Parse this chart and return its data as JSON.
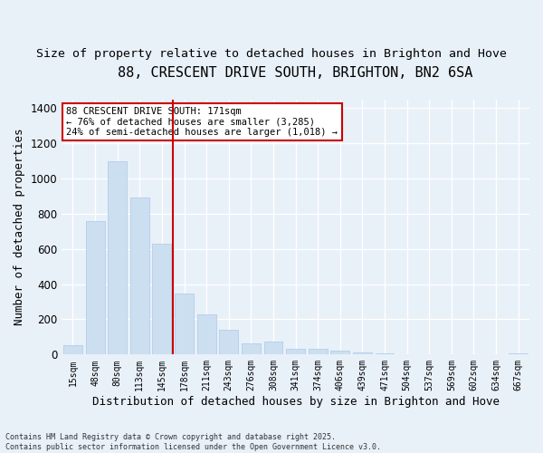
{
  "title": "88, CRESCENT DRIVE SOUTH, BRIGHTON, BN2 6SA",
  "subtitle": "Size of property relative to detached houses in Brighton and Hove",
  "xlabel": "Distribution of detached houses by size in Brighton and Hove",
  "ylabel": "Number of detached properties",
  "categories": [
    "15sqm",
    "48sqm",
    "80sqm",
    "113sqm",
    "145sqm",
    "178sqm",
    "211sqm",
    "243sqm",
    "276sqm",
    "308sqm",
    "341sqm",
    "374sqm",
    "406sqm",
    "439sqm",
    "471sqm",
    "504sqm",
    "537sqm",
    "569sqm",
    "602sqm",
    "634sqm",
    "667sqm"
  ],
  "values": [
    55,
    760,
    1100,
    890,
    630,
    345,
    230,
    140,
    65,
    75,
    35,
    35,
    20,
    12,
    8,
    2,
    0,
    0,
    0,
    0,
    8
  ],
  "bar_color": "#ccdff0",
  "bar_edge_color": "#aac8e8",
  "vline_x": 4.5,
  "vline_color": "#cc0000",
  "annotation_text": "88 CRESCENT DRIVE SOUTH: 171sqm\n← 76% of detached houses are smaller (3,285)\n24% of semi-detached houses are larger (1,018) →",
  "annotation_box_color": "#ffffff",
  "annotation_box_edge": "#cc0000",
  "ylim": [
    0,
    1450
  ],
  "yticks": [
    0,
    200,
    400,
    600,
    800,
    1000,
    1200,
    1400
  ],
  "background_color": "#e8f0f8",
  "grid_color": "#ffffff",
  "footer": "Contains HM Land Registry data © Crown copyright and database right 2025.\nContains public sector information licensed under the Open Government Licence v3.0.",
  "title_fontsize": 11,
  "subtitle_fontsize": 9.5,
  "xlabel_fontsize": 9,
  "ylabel_fontsize": 9
}
